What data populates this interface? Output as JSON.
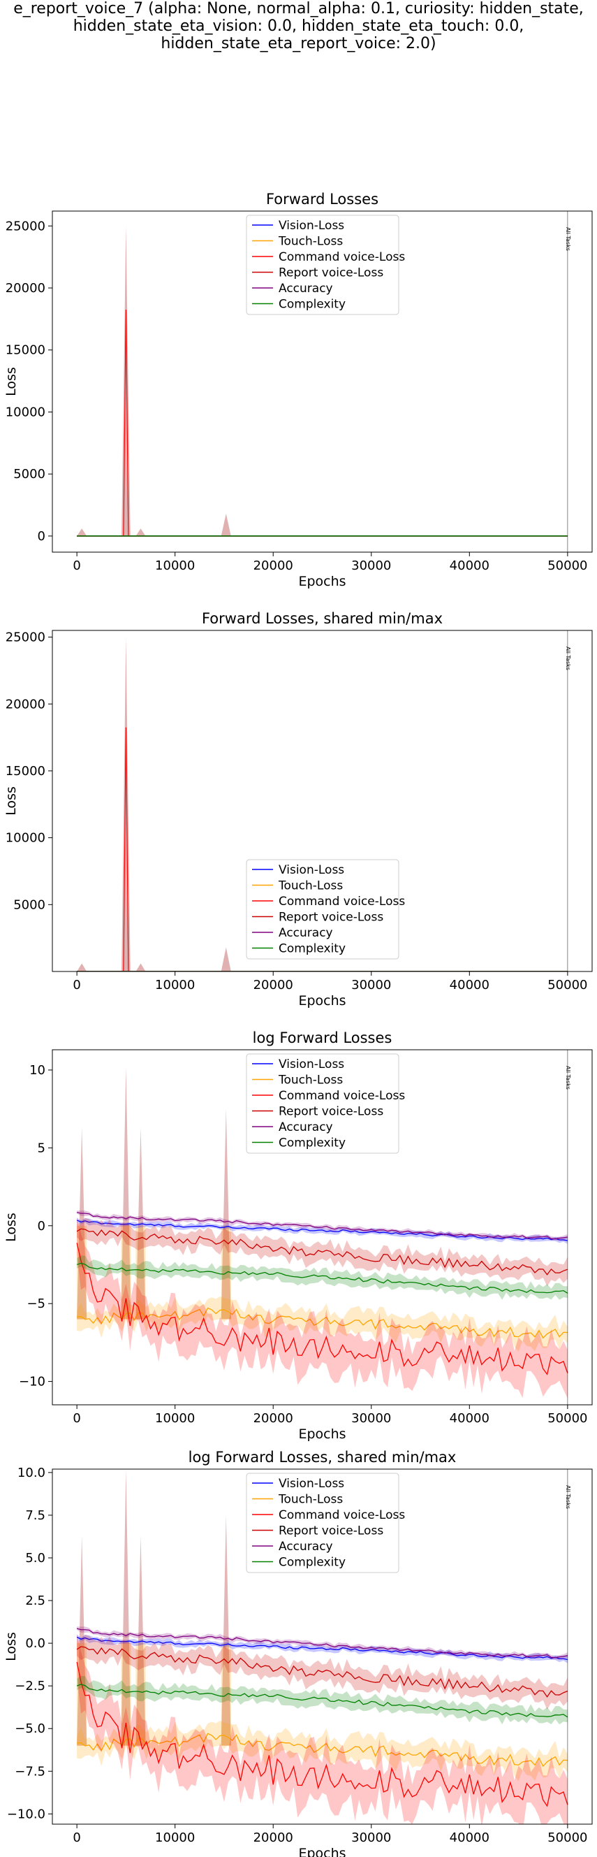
{
  "figure_title": {
    "lines": [
      "e_report_voice_7 (alpha: None, normal_alpha: 0.1, curiosity: hidden_state,",
      "hidden_state_eta_vision: 0.0, hidden_state_eta_touch: 0.0,",
      "hidden_state_eta_report_voice: 2.0)"
    ]
  },
  "colors": {
    "vision": "#0000ff",
    "touch": "#ffa500",
    "command": "#ff0000",
    "report": "#cc0000",
    "accuracy": "#800080",
    "complexity": "#008000",
    "spike_fill": "#c87070"
  },
  "vline_label": "All Tasks",
  "chart_data": [
    {
      "type": "line",
      "title": "Forward Losses",
      "xlabel": "Epochs",
      "ylabel": "Loss",
      "xlim": [
        -2500,
        52500
      ],
      "ylim": [
        -1300,
        26200
      ],
      "xticks": [
        0,
        10000,
        20000,
        30000,
        40000,
        50000
      ],
      "yticks": [
        0,
        5000,
        10000,
        15000,
        20000,
        25000
      ],
      "vline_x": 50000,
      "legend_position": "upper center",
      "series": [
        {
          "name": "Vision-Loss"
        },
        {
          "name": "Touch-Loss"
        },
        {
          "name": "Command voice-Loss"
        },
        {
          "name": "Report voice-Loss"
        },
        {
          "name": "Accuracy"
        },
        {
          "name": "Complexity"
        }
      ],
      "spikes": [
        {
          "x": 500,
          "upper": 600
        },
        {
          "x": 5000,
          "upper": 25000
        },
        {
          "x": 6500,
          "upper": 600
        },
        {
          "x": 15200,
          "upper": 1800
        }
      ]
    },
    {
      "type": "line",
      "title": "Forward Losses, shared min/max",
      "xlabel": "Epochs",
      "ylabel": "Loss",
      "xlim": [
        -2500,
        52500
      ],
      "ylim": [
        0,
        25500
      ],
      "xticks": [
        0,
        10000,
        20000,
        30000,
        40000,
        50000
      ],
      "yticks": [
        5000,
        10000,
        15000,
        20000,
        25000
      ],
      "vline_x": 50000,
      "legend_position": "lower center",
      "series": [
        {
          "name": "Vision-Loss"
        },
        {
          "name": "Touch-Loss"
        },
        {
          "name": "Command voice-Loss"
        },
        {
          "name": "Report voice-Loss"
        },
        {
          "name": "Accuracy"
        },
        {
          "name": "Complexity"
        }
      ],
      "spikes": [
        {
          "x": 500,
          "upper": 600
        },
        {
          "x": 5000,
          "upper": 25000
        },
        {
          "x": 6500,
          "upper": 600
        },
        {
          "x": 15200,
          "upper": 1800
        }
      ]
    },
    {
      "type": "line",
      "title": "log Forward Losses",
      "xlabel": "Epochs",
      "ylabel": "Loss",
      "xlim": [
        -2500,
        52500
      ],
      "ylim": [
        -11.5,
        11.3
      ],
      "xticks": [
        0,
        10000,
        20000,
        30000,
        40000,
        50000
      ],
      "yticks": [
        -10,
        -5,
        0,
        5,
        10
      ],
      "vline_x": 50000,
      "legend_position": "upper center",
      "series": [
        {
          "name": "Vision-Loss"
        },
        {
          "name": "Touch-Loss"
        },
        {
          "name": "Command voice-Loss"
        },
        {
          "name": "Report voice-Loss"
        },
        {
          "name": "Accuracy"
        },
        {
          "name": "Complexity"
        }
      ],
      "log_spikes": [
        {
          "x": 500,
          "upper": 6.3
        },
        {
          "x": 5000,
          "upper": 10.2
        },
        {
          "x": 6500,
          "upper": 6.3
        },
        {
          "x": 15200,
          "upper": 7.5
        }
      ]
    },
    {
      "type": "line",
      "title": "log Forward Losses, shared min/max",
      "xlabel": "Epochs",
      "ylabel": "Loss",
      "xlim": [
        -2500,
        52500
      ],
      "ylim": [
        -10.6,
        10.2
      ],
      "xticks": [
        0,
        10000,
        20000,
        30000,
        40000,
        50000
      ],
      "yticks": [
        -10.0,
        -7.5,
        -5.0,
        -2.5,
        0.0,
        2.5,
        5.0,
        7.5,
        10.0
      ],
      "ytick_labels": [
        "−10.0",
        "−7.5",
        "−5.0",
        "−2.5",
        "0.0",
        "2.5",
        "5.0",
        "7.5",
        "10.0"
      ],
      "vline_x": 50000,
      "legend_position": "upper center",
      "series": [
        {
          "name": "Vision-Loss"
        },
        {
          "name": "Touch-Loss"
        },
        {
          "name": "Command voice-Loss"
        },
        {
          "name": "Report voice-Loss"
        },
        {
          "name": "Accuracy"
        },
        {
          "name": "Complexity"
        }
      ],
      "log_spikes": [
        {
          "x": 500,
          "upper": 6.3
        },
        {
          "x": 5000,
          "upper": 10.2
        },
        {
          "x": 6500,
          "upper": 6.3
        },
        {
          "x": 15200,
          "upper": 7.5
        }
      ]
    }
  ],
  "log_series_trends": {
    "x_points": [
      0,
      2000,
      5000,
      10000,
      15000,
      20000,
      30000,
      40000,
      50000
    ],
    "vision": [
      0.3,
      0.2,
      0.1,
      0.0,
      -0.1,
      -0.2,
      -0.4,
      -0.7,
      -0.9
    ],
    "accuracy": [
      0.9,
      0.6,
      0.5,
      0.4,
      0.3,
      0.1,
      -0.3,
      -0.6,
      -0.8
    ],
    "touch": [
      -6.0,
      -6.0,
      -5.8,
      -5.8,
      -5.5,
      -6.0,
      -6.3,
      -6.7,
      -7.0
    ],
    "command": [
      -1.2,
      -4.0,
      -5.5,
      -6.5,
      -7.0,
      -7.5,
      -8.0,
      -8.5,
      -9.0
    ],
    "report": [
      -0.3,
      -0.5,
      -0.6,
      -0.8,
      -1.0,
      -1.5,
      -2.0,
      -2.5,
      -3.0
    ],
    "complexity": [
      -2.4,
      -2.7,
      -2.8,
      -2.9,
      -3.0,
      -3.1,
      -3.5,
      -4.0,
      -4.3
    ]
  }
}
